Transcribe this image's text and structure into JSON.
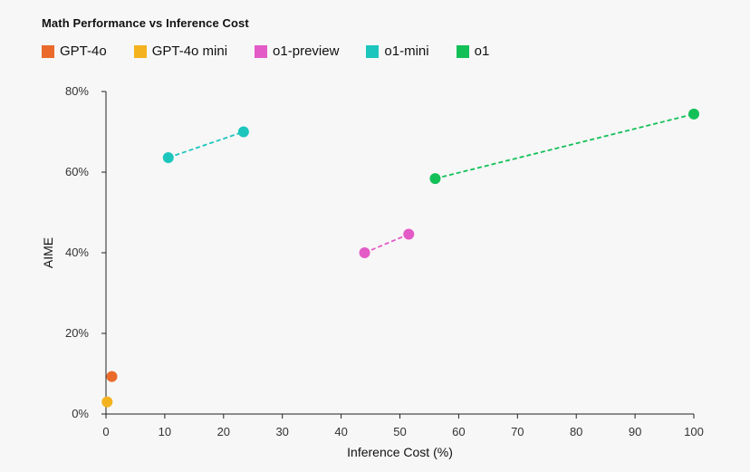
{
  "chart_data": {
    "type": "scatter",
    "title": "Math Performance vs Inference Cost",
    "xlabel": "Inference Cost (%)",
    "ylabel": "AIME",
    "xlim": [
      0,
      100
    ],
    "ylim": [
      0,
      80
    ],
    "xticks": [
      0,
      10,
      20,
      30,
      40,
      50,
      60,
      70,
      80,
      90,
      100
    ],
    "yticks": [
      0,
      20,
      40,
      60,
      80
    ],
    "ytick_labels": [
      "0%",
      "20%",
      "40%",
      "60%",
      "80%"
    ],
    "grid": false,
    "series": [
      {
        "name": "GPT-4o",
        "color": "#ea6a2b",
        "points": [
          [
            1.0,
            9.3
          ]
        ],
        "connected": false
      },
      {
        "name": "GPT-4o mini",
        "color": "#f4b21e",
        "points": [
          [
            0.2,
            3.0
          ]
        ],
        "connected": false
      },
      {
        "name": "o1-preview",
        "color": "#e35bc6",
        "points": [
          [
            44.0,
            40.0
          ],
          [
            51.5,
            44.6
          ]
        ],
        "connected": true
      },
      {
        "name": "o1-mini",
        "color": "#1cc6bd",
        "points": [
          [
            10.6,
            63.6
          ],
          [
            23.4,
            70.0
          ]
        ],
        "connected": true
      },
      {
        "name": "o1",
        "color": "#13c058",
        "points": [
          [
            56.0,
            58.4
          ],
          [
            100.0,
            74.4
          ]
        ],
        "connected": true
      }
    ]
  }
}
